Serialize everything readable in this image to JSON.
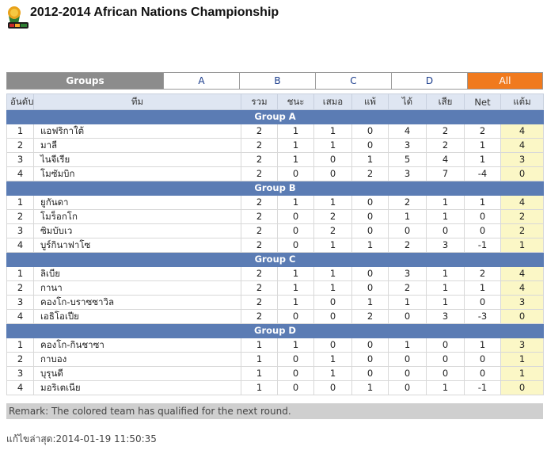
{
  "title": "2012-2014 African Nations Championship",
  "tabs": [
    "Groups",
    "A",
    "B",
    "C",
    "D",
    "All"
  ],
  "columns": [
    "อันดับ",
    "ทีม",
    "รวม",
    "ชนะ",
    "เสมอ",
    "แพ้",
    "ได้",
    "เสีย",
    "Net",
    "แต้ม"
  ],
  "groups": [
    {
      "name": "Group A",
      "rows": [
        [
          "1",
          "แอฟริกาใต้",
          "2",
          "1",
          "1",
          "0",
          "4",
          "2",
          "2",
          "4"
        ],
        [
          "2",
          "มาลี",
          "2",
          "1",
          "1",
          "0",
          "3",
          "2",
          "1",
          "4"
        ],
        [
          "3",
          "ไนจีเรีย",
          "2",
          "1",
          "0",
          "1",
          "5",
          "4",
          "1",
          "3"
        ],
        [
          "4",
          "โมซัมบิก",
          "2",
          "0",
          "0",
          "2",
          "3",
          "7",
          "-4",
          "0"
        ]
      ]
    },
    {
      "name": "Group B",
      "rows": [
        [
          "1",
          "ยูกันดา",
          "2",
          "1",
          "1",
          "0",
          "2",
          "1",
          "1",
          "4"
        ],
        [
          "2",
          "โมร็อกโก",
          "2",
          "0",
          "2",
          "0",
          "1",
          "1",
          "0",
          "2"
        ],
        [
          "3",
          "ซิมบับเว",
          "2",
          "0",
          "2",
          "0",
          "0",
          "0",
          "0",
          "2"
        ],
        [
          "4",
          "บูร์กินาฟาโซ",
          "2",
          "0",
          "1",
          "1",
          "2",
          "3",
          "-1",
          "1"
        ]
      ]
    },
    {
      "name": "Group C",
      "rows": [
        [
          "1",
          "ลิเบีย",
          "2",
          "1",
          "1",
          "0",
          "3",
          "1",
          "2",
          "4"
        ],
        [
          "2",
          "กานา",
          "2",
          "1",
          "1",
          "0",
          "2",
          "1",
          "1",
          "4"
        ],
        [
          "3",
          "คองโก-บราซซาวิล",
          "2",
          "1",
          "0",
          "1",
          "1",
          "1",
          "0",
          "3"
        ],
        [
          "4",
          "เอธิโอเปีย",
          "2",
          "0",
          "0",
          "2",
          "0",
          "3",
          "-3",
          "0"
        ]
      ]
    },
    {
      "name": "Group D",
      "rows": [
        [
          "1",
          "คองโก-กินชาซา",
          "1",
          "1",
          "0",
          "0",
          "1",
          "0",
          "1",
          "3"
        ],
        [
          "2",
          "กาบอง",
          "1",
          "0",
          "1",
          "0",
          "0",
          "0",
          "0",
          "1"
        ],
        [
          "3",
          "บุรุนดี",
          "1",
          "0",
          "1",
          "0",
          "0",
          "0",
          "0",
          "1"
        ],
        [
          "4",
          "มอริเตเนีย",
          "1",
          "0",
          "0",
          "1",
          "0",
          "1",
          "-1",
          "0"
        ]
      ]
    }
  ],
  "remark": "Remark: The colored team has qualified for the next round.",
  "updated": "แก้ไขล่าสุด:2014-01-19 11:50:35",
  "colors": {
    "tab_groups": "#8c8c8c",
    "tab_all": "#f07a1e",
    "group_header": "#5b7cb4",
    "points_highlight": "#fbf7c6",
    "column_header": "#dfe6f2"
  },
  "icons": {
    "logo": "chan-2014-logo-icon"
  }
}
